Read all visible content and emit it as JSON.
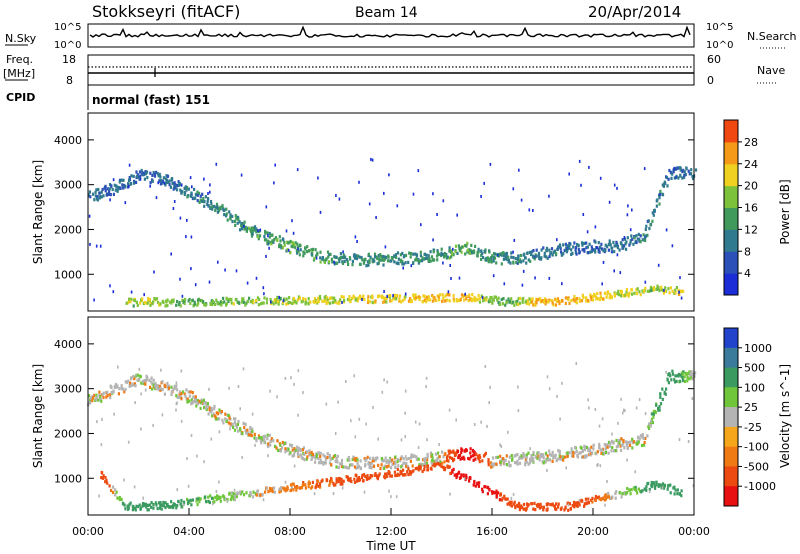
{
  "header": {
    "station": "Stokkseyri (fitACF)",
    "beam": "Beam 14",
    "date": "20/Apr/2014"
  },
  "top_panels": {
    "nsky_label": "N.Sky",
    "nsky_ticks": [
      "10^5",
      "10^0"
    ],
    "nsearch_label": "N.Search",
    "nsearch_ticks": [
      "10^5",
      "10^0"
    ],
    "freq_label": "Freq.",
    "freq_unit": "[MHz]",
    "freq_ticks": [
      "18",
      "8"
    ],
    "nave_label": "Nave",
    "nave_ticks": [
      "60",
      "0"
    ],
    "cpid_label": "CPID",
    "cpid_text": "normal (fast) 151"
  },
  "colors": {
    "power_scale": [
      "#1a2dd6",
      "#2b50b8",
      "#2f7a8e",
      "#3f9a5c",
      "#7cc23a",
      "#f0d020",
      "#f59a18",
      "#f04810",
      "#e81010"
    ],
    "velocity_scale": [
      "#2244cc",
      "#3a7a9a",
      "#3a9a60",
      "#70c63a",
      "#b4b4b4",
      "#f5a61a",
      "#ef7a14",
      "#ec4a10",
      "#e81010"
    ]
  },
  "chart_data": [
    {
      "type": "heatmap",
      "title": "Power",
      "ylabel": "Slant Range [km]",
      "xlim": [
        "00:00",
        "24:00"
      ],
      "ylim": [
        180,
        4600
      ],
      "yticks": [
        "1000",
        "2000",
        "3000",
        "4000"
      ],
      "colorbar": {
        "label": "Power [dB]",
        "ticks": [
          "4",
          "8",
          "12",
          "16",
          "20",
          "24",
          "28"
        ],
        "range": [
          0,
          32
        ]
      },
      "bands": [
        {
          "name": "arc",
          "x": [
            0.0,
            1.0,
            2.0,
            3.0,
            4.0,
            5.0,
            6.0,
            7.0,
            8.0,
            9.0,
            10.0,
            11.0,
            12.0,
            13.0,
            14.0,
            15.0,
            16.0,
            17.0,
            18.0,
            19.0,
            20.0,
            21.0,
            22.0,
            23.0,
            24.0
          ],
          "range_km": [
            2750,
            2950,
            3250,
            3150,
            2850,
            2550,
            2150,
            1850,
            1650,
            1450,
            1380,
            1350,
            1380,
            1400,
            1500,
            1600,
            1400,
            1380,
            1500,
            1600,
            1650,
            1650,
            1900,
            3300,
            3300
          ],
          "power_db": [
            8,
            9,
            8,
            8,
            10,
            11,
            13,
            14,
            14,
            14,
            13,
            12,
            12,
            12,
            13,
            15,
            12,
            10,
            10,
            9,
            8,
            9,
            10,
            9,
            9
          ]
        },
        {
          "name": "near-range",
          "x": [
            1.5,
            2.5,
            3.5,
            15.0,
            16.5,
            17.5,
            18.5,
            22.5,
            23.5
          ],
          "range_km": [
            400,
            420,
            400,
            520,
            420,
            420,
            420,
            700,
            650
          ],
          "power_db": [
            18,
            20,
            16,
            24,
            14,
            22,
            26,
            18,
            22
          ]
        }
      ]
    },
    {
      "type": "heatmap",
      "title": "Velocity",
      "xlabel": "Time UT",
      "ylabel": "Slant Range [km]",
      "xlim": [
        "00:00",
        "24:00"
      ],
      "ylim": [
        180,
        4600
      ],
      "xticks": [
        "00:00",
        "04:00",
        "08:00",
        "12:00",
        "16:00",
        "20:00",
        "00:00"
      ],
      "yticks": [
        "1000",
        "2000",
        "3000",
        "4000"
      ],
      "colorbar": {
        "label": "Velocity [m s^-1]",
        "ticks": [
          "1000",
          "500",
          "100",
          "25",
          "-25",
          "-100",
          "-500",
          "-1000"
        ],
        "range": [
          -1000,
          1000
        ]
      },
      "bands": [
        {
          "name": "arc",
          "x": [
            0.0,
            2.0,
            4.0,
            6.0,
            8.0,
            10.0,
            12.0,
            14.0,
            15.0,
            16.0,
            18.0,
            20.0,
            22.0,
            23.0,
            24.0
          ],
          "range_km": [
            2750,
            3250,
            2850,
            2150,
            1650,
            1380,
            1380,
            1500,
            1600,
            1400,
            1500,
            1650,
            1900,
            3300,
            3300
          ],
          "velocity_ms": [
            0,
            0,
            0,
            0,
            0,
            0,
            0,
            0,
            -800,
            0,
            0,
            0,
            0,
            200,
            0
          ]
        },
        {
          "name": "near-range",
          "x": [
            0.5,
            1.5,
            3.0,
            14.0,
            15.0,
            17.0,
            19.0,
            22.5,
            23.5
          ],
          "range_km": [
            1100,
            400,
            420,
            1300,
            1000,
            400,
            400,
            900,
            700
          ],
          "velocity_ms": [
            -200,
            150,
            150,
            -300,
            -900,
            -250,
            -250,
            200,
            300
          ]
        }
      ]
    }
  ]
}
